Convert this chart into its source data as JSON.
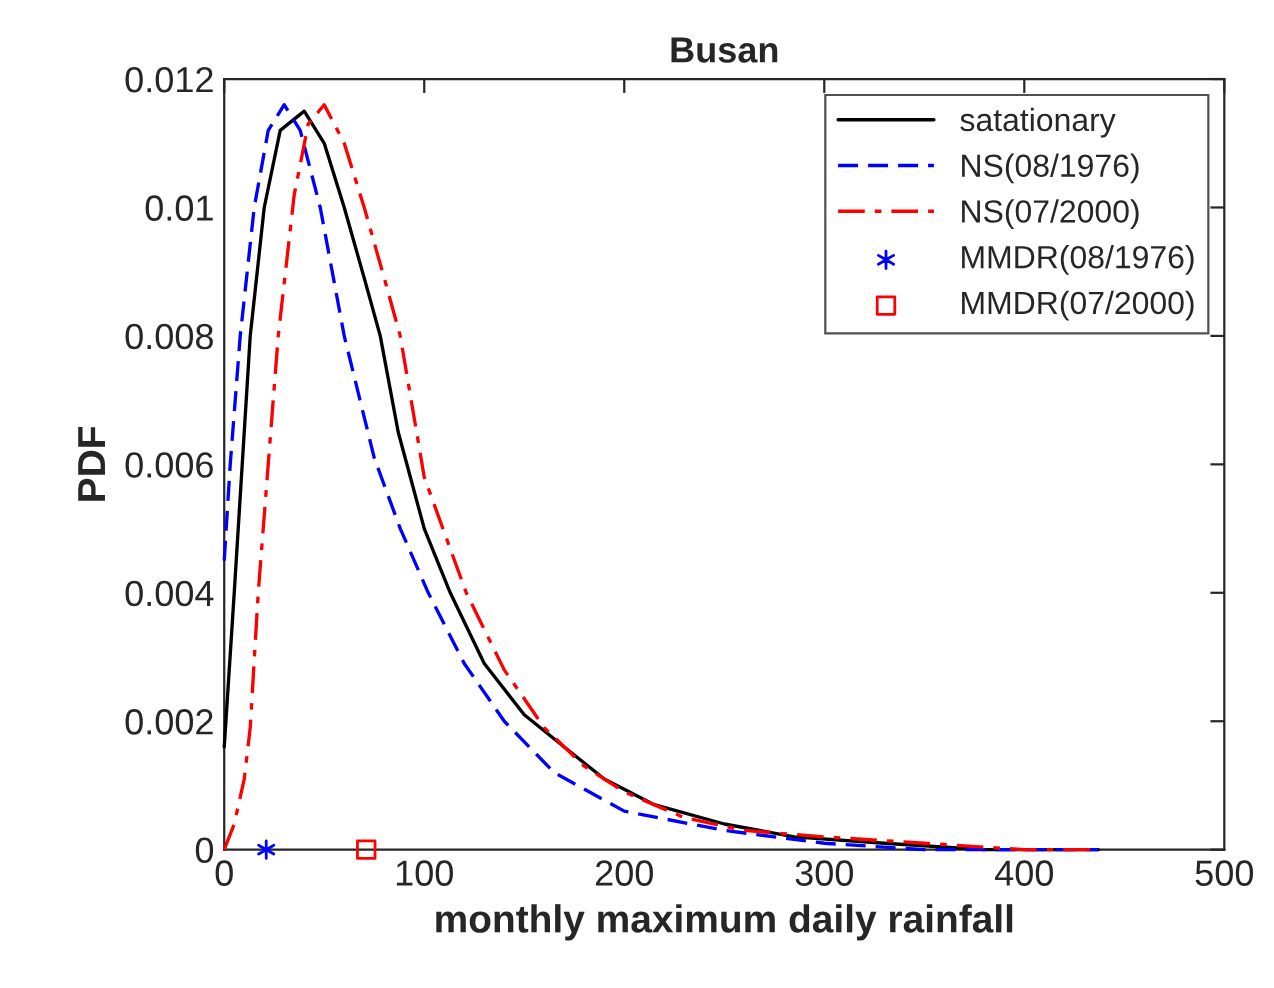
{
  "chart_data": {
    "type": "line",
    "title": "Busan",
    "xlabel": "monthly maximum daily rainfall",
    "ylabel": "PDF",
    "xlim": [
      0,
      500
    ],
    "xticks": [
      0,
      100,
      200,
      300,
      400,
      500
    ],
    "ylim": [
      0,
      0.012
    ],
    "yticks": [
      0,
      0.002,
      0.004,
      0.006,
      0.008,
      0.01,
      0.012
    ],
    "grid": false,
    "legend": "top right",
    "series": [
      {
        "name": "satationary",
        "type": "line",
        "color": "#000000",
        "line_style": "solid",
        "x": [
          0,
          5,
          13,
          20,
          28,
          40,
          50,
          60,
          70,
          78,
          87,
          100,
          113,
          130,
          150,
          170,
          190,
          215,
          250,
          285,
          330,
          380,
          437
        ],
        "values": [
          0.0016,
          0.004,
          0.008,
          0.01,
          0.0112,
          0.0115,
          0.011,
          0.01,
          0.0089,
          0.008,
          0.0065,
          0.005,
          0.004,
          0.0029,
          0.0021,
          0.0016,
          0.0011,
          0.0007,
          0.0004,
          0.0002,
          0.0001,
          0,
          0
        ]
      },
      {
        "name": "NS(08/1976)",
        "type": "line",
        "color": "#0000ff",
        "line_style": "dashed",
        "x": [
          0,
          3,
          8,
          15,
          22,
          30,
          38,
          48,
          60,
          75,
          88,
          102,
          120,
          140,
          165,
          200,
          250,
          300,
          350,
          437
        ],
        "values": [
          0.0045,
          0.006,
          0.008,
          0.01,
          0.0112,
          0.0116,
          0.0112,
          0.01,
          0.008,
          0.0061,
          0.005,
          0.004,
          0.0029,
          0.002,
          0.0012,
          0.0006,
          0.0003,
          0.0001,
          0,
          0
        ]
      },
      {
        "name": "NS(07/2000)",
        "type": "line",
        "color": "#ff0000",
        "line_style": "dashdot",
        "x": [
          0,
          5,
          10,
          13,
          17,
          22,
          27,
          35,
          42,
          50,
          60,
          70,
          80,
          88,
          100,
          121,
          140,
          160,
          180,
          200,
          230,
          260,
          300,
          350,
          400,
          437
        ],
        "values": [
          0,
          0.0004,
          0.0011,
          0.0019,
          0.004,
          0.006,
          0.008,
          0.0102,
          0.0113,
          0.0116,
          0.011,
          0.01,
          0.0089,
          0.008,
          0.0058,
          0.004,
          0.0028,
          0.0019,
          0.0013,
          0.0009,
          0.0005,
          0.0003,
          0.0002,
          0.0001,
          0,
          0
        ]
      },
      {
        "name": "MMDR(08/1976)",
        "type": "scatter",
        "color": "#0000ff",
        "marker": "cross",
        "x": [
          21
        ],
        "values": [
          0
        ]
      },
      {
        "name": "MMDR(07/2000)",
        "type": "scatter",
        "color": "#ff0000",
        "marker": "square",
        "x": [
          71
        ],
        "values": [
          0
        ]
      }
    ]
  }
}
